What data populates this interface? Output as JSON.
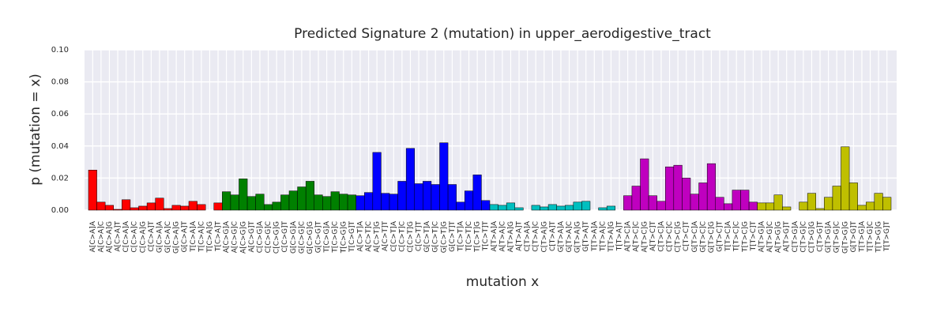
{
  "chart_data": {
    "type": "bar",
    "title": "Predicted Signature 2 (mutation) in upper_aerodigestive_tract",
    "x_label": "mutation x",
    "y_label": "p (mutation = x)",
    "categories": [
      "A[C>A]A",
      "A[C>A]C",
      "A[C>A]G",
      "A[C>A]T",
      "C[C>A]A",
      "C[C>A]C",
      "C[C>A]G",
      "C[C>A]T",
      "G[C>A]A",
      "G[C>A]C",
      "G[C>A]G",
      "G[C>A]T",
      "T[C>A]A",
      "T[C>A]C",
      "T[C>A]G",
      "T[C>A]T",
      "A[C>G]A",
      "A[C>G]C",
      "A[C>G]G",
      "A[C>G]T",
      "C[C>G]A",
      "C[C>G]C",
      "C[C>G]G",
      "C[C>G]T",
      "G[C>G]A",
      "G[C>G]C",
      "G[C>G]G",
      "G[C>G]T",
      "T[C>G]A",
      "T[C>G]C",
      "T[C>G]G",
      "T[C>G]T",
      "A[C>T]A",
      "A[C>T]C",
      "A[C>T]G",
      "A[C>T]T",
      "C[C>T]A",
      "C[C>T]C",
      "C[C>T]G",
      "C[C>T]T",
      "G[C>T]A",
      "G[C>T]C",
      "G[C>T]G",
      "G[C>T]T",
      "T[C>T]A",
      "T[C>T]C",
      "T[C>T]G",
      "T[C>T]T",
      "A[T>A]A",
      "A[T>A]C",
      "A[T>A]G",
      "A[T>A]T",
      "C[T>A]A",
      "C[T>A]C",
      "C[T>A]G",
      "C[T>A]T",
      "G[T>A]A",
      "G[T>A]C",
      "G[T>A]G",
      "G[T>A]T",
      "T[T>A]A",
      "T[T>A]C",
      "T[T>A]G",
      "T[T>A]T",
      "A[T>C]A",
      "A[T>C]C",
      "A[T>C]G",
      "A[T>C]T",
      "C[T>C]A",
      "C[T>C]C",
      "C[T>C]G",
      "C[T>C]T",
      "G[T>C]A",
      "G[T>C]C",
      "G[T>C]G",
      "G[T>C]T",
      "T[T>C]A",
      "T[T>C]C",
      "T[T>C]G",
      "T[T>C]T",
      "A[T>G]A",
      "A[T>G]C",
      "A[T>G]G",
      "A[T>G]T",
      "C[T>G]A",
      "C[T>G]C",
      "C[T>G]G",
      "C[T>G]T",
      "G[T>G]A",
      "G[T>G]C",
      "G[T>G]G",
      "G[T>G]T",
      "T[T>G]A",
      "T[T>G]C",
      "T[T>G]G",
      "T[T>G]T"
    ],
    "values": [
      0.025,
      0.005,
      0.003,
      0.0005,
      0.0065,
      0.0015,
      0.0025,
      0.0045,
      0.0075,
      0.001,
      0.003,
      0.0025,
      0.0055,
      0.0035,
      0,
      0.0045,
      0.0115,
      0.0095,
      0.0195,
      0.0085,
      0.01,
      0.0035,
      0.005,
      0.0095,
      0.012,
      0.0145,
      0.018,
      0.0095,
      0.0085,
      0.0115,
      0.01,
      0.0095,
      0.009,
      0.011,
      0.036,
      0.0105,
      0.01,
      0.018,
      0.0385,
      0.0165,
      0.018,
      0.016,
      0.042,
      0.016,
      0.005,
      0.012,
      0.022,
      0.006,
      0.0035,
      0.003,
      0.0045,
      0.0015,
      0,
      0.003,
      0.002,
      0.0035,
      0.0025,
      0.003,
      0.005,
      0.0055,
      0,
      0.0015,
      0.0025,
      0,
      0.009,
      0.015,
      0.032,
      0.009,
      0.0055,
      0.027,
      0.028,
      0.02,
      0.01,
      0.017,
      0.029,
      0.008,
      0.004,
      0.0125,
      0.0125,
      0.005,
      0.0045,
      0.0045,
      0.0095,
      0.002,
      0,
      0.005,
      0.0105,
      0.001,
      0.008,
      0.015,
      0.0395,
      0.017,
      0.003,
      0.005,
      0.0105,
      0.008
    ],
    "colors": [
      "#ff0000",
      "#ff0000",
      "#ff0000",
      "#ff0000",
      "#ff0000",
      "#ff0000",
      "#ff0000",
      "#ff0000",
      "#ff0000",
      "#ff0000",
      "#ff0000",
      "#ff0000",
      "#ff0000",
      "#ff0000",
      "#ff0000",
      "#ff0000",
      "#008000",
      "#008000",
      "#008000",
      "#008000",
      "#008000",
      "#008000",
      "#008000",
      "#008000",
      "#008000",
      "#008000",
      "#008000",
      "#008000",
      "#008000",
      "#008000",
      "#008000",
      "#008000",
      "#0000ff",
      "#0000ff",
      "#0000ff",
      "#0000ff",
      "#0000ff",
      "#0000ff",
      "#0000ff",
      "#0000ff",
      "#0000ff",
      "#0000ff",
      "#0000ff",
      "#0000ff",
      "#0000ff",
      "#0000ff",
      "#0000ff",
      "#0000ff",
      "#00bfbf",
      "#00bfbf",
      "#00bfbf",
      "#00bfbf",
      "#00bfbf",
      "#00bfbf",
      "#00bfbf",
      "#00bfbf",
      "#00bfbf",
      "#00bfbf",
      "#00bfbf",
      "#00bfbf",
      "#00bfbf",
      "#00bfbf",
      "#00bfbf",
      "#00bfbf",
      "#bf00bf",
      "#bf00bf",
      "#bf00bf",
      "#bf00bf",
      "#bf00bf",
      "#bf00bf",
      "#bf00bf",
      "#bf00bf",
      "#bf00bf",
      "#bf00bf",
      "#bf00bf",
      "#bf00bf",
      "#bf00bf",
      "#bf00bf",
      "#bf00bf",
      "#bf00bf",
      "#bfbf00",
      "#bfbf00",
      "#bfbf00",
      "#bfbf00",
      "#bfbf00",
      "#bfbf00",
      "#bfbf00",
      "#bfbf00",
      "#bfbf00",
      "#bfbf00",
      "#bfbf00",
      "#bfbf00",
      "#bfbf00",
      "#bfbf00",
      "#bfbf00",
      "#bfbf00"
    ],
    "ylim": [
      0,
      0.1
    ],
    "yticks": [
      {
        "value": 0,
        "label": "0.00"
      },
      {
        "value": 0.02,
        "label": "0.02"
      },
      {
        "value": 0.04,
        "label": "0.04"
      },
      {
        "value": 0.06,
        "label": "0.06"
      },
      {
        "value": 0.08,
        "label": "0.08"
      },
      {
        "value": 0.1,
        "label": "0.10"
      }
    ],
    "grid": true
  }
}
